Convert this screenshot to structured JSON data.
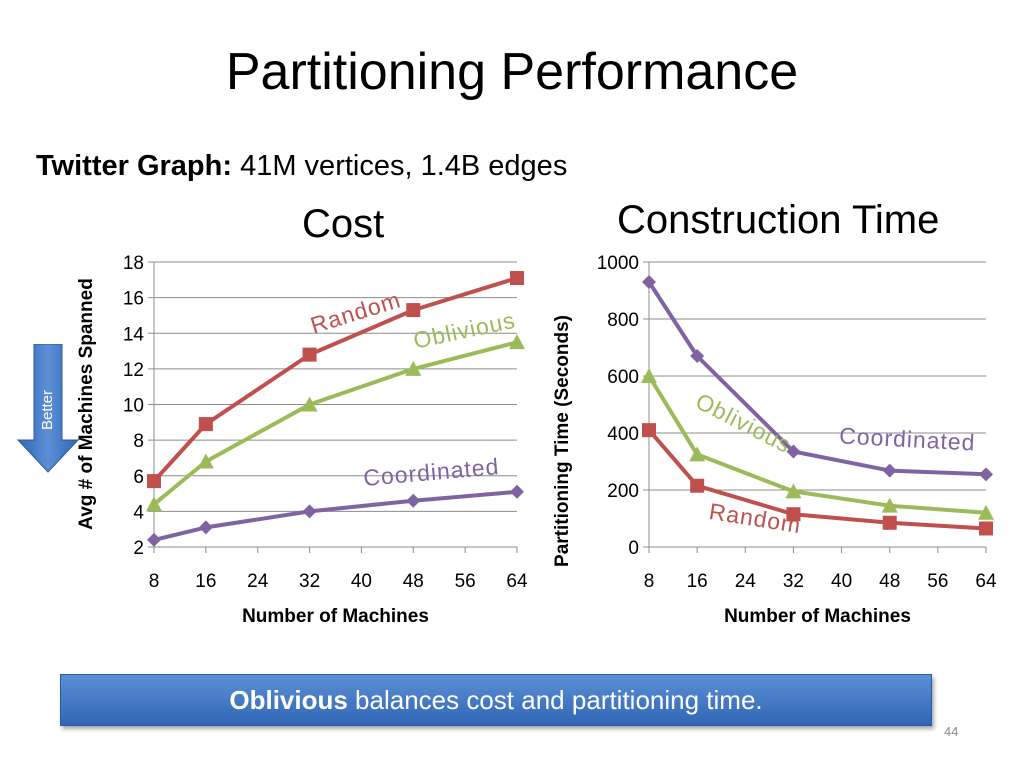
{
  "slide": {
    "title": "Partitioning Performance",
    "subtitle_bold": "Twitter Graph:",
    "subtitle_rest": " 41M vertices, 1.4B edges",
    "better_label": "Better",
    "banner_bold": "Oblivious",
    "banner_rest": " balances cost and partitioning time.",
    "page_number": "44"
  },
  "colors": {
    "random": "#c0504d",
    "oblivious": "#9bbb59",
    "coordinated": "#8064a2",
    "banner": "#3c75c3"
  },
  "chart_data": [
    {
      "type": "line",
      "title": "Cost",
      "xlabel": "Number of Machines",
      "ylabel": "Avg # of Machines Spanned",
      "x_ticks": [
        8,
        16,
        24,
        32,
        40,
        48,
        56,
        64
      ],
      "xlim": [
        8,
        64
      ],
      "y_ticks": [
        2,
        4,
        6,
        8,
        10,
        12,
        14,
        16,
        18
      ],
      "ylim": [
        2,
        18
      ],
      "grid": "horizontal",
      "x": [
        8,
        16,
        32,
        48,
        64
      ],
      "series": [
        {
          "name": "Random",
          "marker": "square",
          "values": [
            5.7,
            8.9,
            12.8,
            15.3,
            17.1
          ]
        },
        {
          "name": "Oblivious",
          "marker": "triangle",
          "values": [
            4.4,
            6.8,
            10.0,
            12.0,
            13.5
          ]
        },
        {
          "name": "Coordinated",
          "marker": "diamond",
          "values": [
            2.4,
            3.1,
            4.0,
            4.6,
            5.1
          ]
        }
      ]
    },
    {
      "type": "line",
      "title": "Construction Time",
      "xlabel": "Number of Machines",
      "ylabel": "Partitioning Time (Seconds)",
      "x_ticks": [
        8,
        16,
        24,
        32,
        40,
        48,
        56,
        64
      ],
      "xlim": [
        8,
        64
      ],
      "y_ticks": [
        0,
        200,
        400,
        600,
        800,
        1000
      ],
      "ylim": [
        0,
        1000
      ],
      "grid": "horizontal",
      "x": [
        8,
        16,
        32,
        48,
        64
      ],
      "series": [
        {
          "name": "Coordinated",
          "marker": "diamond",
          "values": [
            930,
            670,
            335,
            268,
            255
          ]
        },
        {
          "name": "Oblivious",
          "marker": "triangle",
          "values": [
            600,
            325,
            195,
            145,
            120
          ]
        },
        {
          "name": "Random",
          "marker": "square",
          "values": [
            410,
            215,
            115,
            85,
            65
          ]
        }
      ]
    }
  ]
}
